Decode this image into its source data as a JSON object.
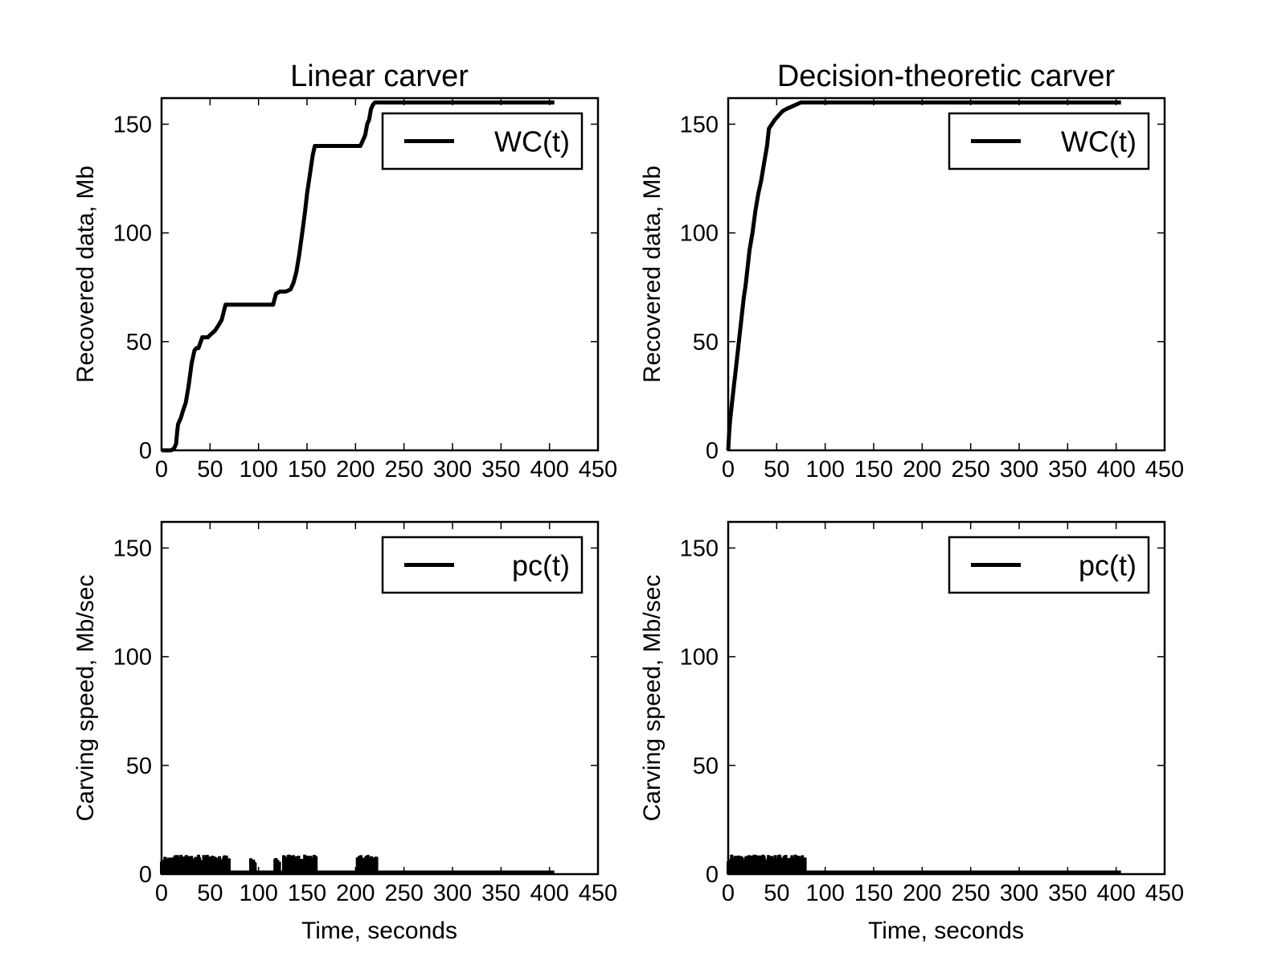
{
  "figure": {
    "background": "#ffffff",
    "line_color": "#000000"
  },
  "chart_data": [
    {
      "type": "line",
      "title": "Linear carver",
      "xlabel": "",
      "ylabel": "Recovered data, Mb",
      "xlim": [
        0,
        450
      ],
      "ylim": [
        0,
        162
      ],
      "xticks": [
        0,
        50,
        100,
        150,
        200,
        250,
        300,
        350,
        400,
        450
      ],
      "yticks": [
        0,
        50,
        100,
        150
      ],
      "grid": false,
      "legend": {
        "position": "top-right",
        "entries": [
          "WC(t)"
        ]
      },
      "series": [
        {
          "name": "WC(t)",
          "x": [
            0,
            10,
            13,
            15,
            16,
            17,
            20,
            22,
            25,
            28,
            31,
            34,
            36,
            38,
            42,
            45,
            48,
            50,
            55,
            58,
            62,
            66,
            70,
            75,
            80,
            90,
            100,
            110,
            115,
            118,
            122,
            128,
            133,
            136,
            139,
            142,
            145,
            148,
            150,
            152,
            154,
            156,
            158,
            160,
            165,
            170,
            180,
            190,
            200,
            205,
            208,
            210,
            212,
            214,
            216,
            218,
            220,
            230,
            260,
            300,
            350,
            405
          ],
          "y": [
            0,
            0,
            1,
            3,
            8,
            12,
            15,
            18,
            22,
            30,
            40,
            46,
            47,
            47,
            52,
            52,
            52,
            53,
            55,
            57,
            60,
            67,
            67,
            67,
            67,
            67,
            67,
            67,
            67,
            72,
            73,
            73,
            74,
            77,
            82,
            90,
            100,
            110,
            118,
            124,
            130,
            136,
            140,
            140,
            140,
            140,
            140,
            140,
            140,
            140,
            143,
            145,
            150,
            152,
            157,
            159,
            160,
            160,
            160,
            160,
            160,
            160
          ]
        }
      ]
    },
    {
      "type": "line",
      "title": "Decision-theoretic carver",
      "xlabel": "",
      "ylabel": "Recovered data, Mb",
      "xlim": [
        0,
        450
      ],
      "ylim": [
        0,
        162
      ],
      "xticks": [
        0,
        50,
        100,
        150,
        200,
        250,
        300,
        350,
        400,
        450
      ],
      "yticks": [
        0,
        50,
        100,
        150
      ],
      "grid": false,
      "legend": {
        "position": "top-right",
        "entries": [
          "WC(t)"
        ]
      },
      "series": [
        {
          "name": "WC(t)",
          "x": [
            0,
            1,
            2,
            4,
            6,
            8,
            10,
            12,
            14,
            16,
            18,
            20,
            22,
            25,
            28,
            31,
            34,
            37,
            40,
            42,
            45,
            48,
            52,
            56,
            60,
            65,
            70,
            75,
            80,
            100,
            150,
            200,
            250,
            300,
            350,
            405
          ],
          "y": [
            0,
            8,
            14,
            22,
            30,
            38,
            46,
            54,
            62,
            70,
            76,
            84,
            92,
            100,
            110,
            118,
            124,
            132,
            140,
            148,
            150,
            152,
            154,
            156,
            157,
            158,
            159,
            160,
            160,
            160,
            160,
            160,
            160,
            160,
            160,
            160
          ]
        }
      ]
    },
    {
      "type": "line",
      "title": "",
      "xlabel": "Time, seconds",
      "ylabel": "Carving speed, Mb/sec",
      "xlim": [
        0,
        450
      ],
      "ylim": [
        0,
        162
      ],
      "xticks": [
        0,
        50,
        100,
        150,
        200,
        250,
        300,
        350,
        400,
        450
      ],
      "yticks": [
        0,
        50,
        100,
        150
      ],
      "grid": false,
      "legend": {
        "position": "top-right",
        "entries": [
          "pc(t)"
        ]
      },
      "series": [
        {
          "name": "pc(t)",
          "segments": [
            {
              "from": 0,
              "to": 12,
              "min": 3,
              "max": 8
            },
            {
              "from": 12,
              "to": 70,
              "min": 2,
              "max": 9
            },
            {
              "from": 92,
              "to": 97,
              "min": 0,
              "max": 8
            },
            {
              "from": 117,
              "to": 122,
              "min": 0,
              "max": 8
            },
            {
              "from": 126,
              "to": 160,
              "min": 2,
              "max": 9
            },
            {
              "from": 202,
              "to": 222,
              "min": 2,
              "max": 9
            }
          ],
          "baseline": {
            "from": 0,
            "to": 405,
            "value": 0
          }
        }
      ]
    },
    {
      "type": "line",
      "title": "",
      "xlabel": "Time, seconds",
      "ylabel": "Carving speed, Mb/sec",
      "xlim": [
        0,
        450
      ],
      "ylim": [
        0,
        162
      ],
      "xticks": [
        0,
        50,
        100,
        150,
        200,
        250,
        300,
        350,
        400,
        450
      ],
      "yticks": [
        0,
        50,
        100,
        150
      ],
      "grid": false,
      "legend": {
        "position": "top-right",
        "entries": [
          "pc(t)"
        ]
      },
      "series": [
        {
          "name": "pc(t)",
          "segments": [
            {
              "from": 0,
              "to": 80,
              "min": 2,
              "max": 9
            }
          ],
          "baseline": {
            "from": 0,
            "to": 405,
            "value": 0
          }
        }
      ]
    }
  ]
}
